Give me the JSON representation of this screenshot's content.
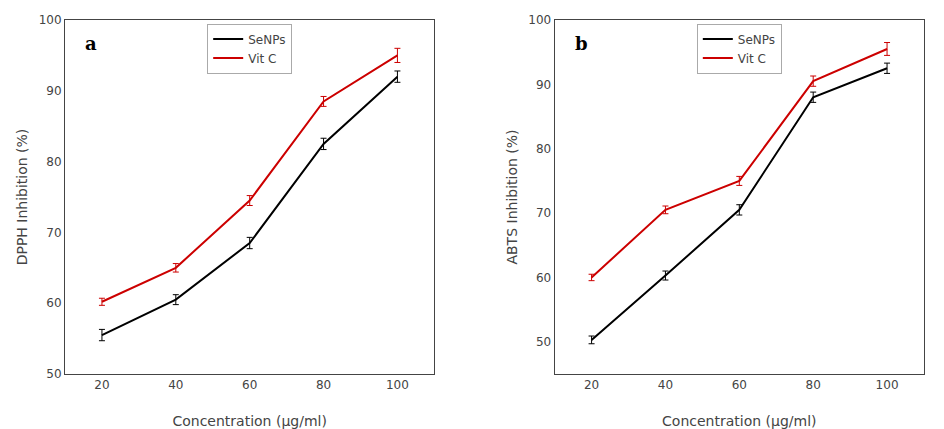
{
  "chart_data": [
    {
      "type": "line",
      "xlabel": "Concentration (μg/ml)",
      "ylabel": "DPPH Inhibition (%)",
      "x": [
        20,
        40,
        60,
        80,
        100
      ],
      "series": [
        {
          "name": "SeNPs",
          "color": "#000000",
          "values": [
            55.5,
            60.5,
            68.5,
            82.5,
            92.0
          ],
          "errors": [
            0.8,
            0.7,
            0.8,
            0.8,
            0.8
          ]
        },
        {
          "name": "Vit C",
          "color": "#cc0000",
          "values": [
            60.2,
            65.0,
            74.5,
            88.5,
            95.0
          ],
          "errors": [
            0.5,
            0.6,
            0.7,
            0.7,
            1.0
          ]
        }
      ],
      "xlim": [
        10,
        110
      ],
      "xticks": [
        20,
        40,
        60,
        80,
        100
      ],
      "ylim": [
        50,
        100
      ],
      "yticks": [
        50,
        60,
        70,
        80,
        90,
        100
      ],
      "annotations": [
        "a"
      ],
      "legend": "upper center",
      "grid": false
    },
    {
      "type": "line",
      "xlabel": "Concentration (μg/ml)",
      "ylabel": "ABTS Inhibition (%)",
      "x": [
        20,
        40,
        60,
        80,
        100
      ],
      "series": [
        {
          "name": "SeNPs",
          "color": "#000000",
          "values": [
            50.3,
            60.3,
            70.5,
            88.0,
            92.5
          ],
          "errors": [
            0.6,
            0.7,
            0.8,
            0.8,
            0.8
          ]
        },
        {
          "name": "Vit C",
          "color": "#cc0000",
          "values": [
            60.0,
            70.5,
            75.0,
            90.5,
            95.5
          ],
          "errors": [
            0.5,
            0.6,
            0.7,
            0.8,
            1.0
          ]
        }
      ],
      "xlim": [
        10,
        110
      ],
      "xticks": [
        20,
        40,
        60,
        80,
        100
      ],
      "ylim": [
        45,
        100
      ],
      "yticks": [
        50,
        60,
        70,
        80,
        90,
        100
      ],
      "annotations": [
        "b"
      ],
      "legend": "upper center",
      "grid": false
    }
  ]
}
